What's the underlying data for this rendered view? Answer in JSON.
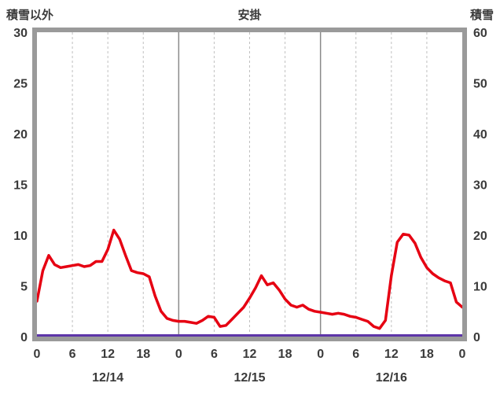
{
  "header": {
    "left_axis_label": "積雪以外",
    "title": "安掛",
    "right_axis_label": "積雪"
  },
  "colors": {
    "main_line": "#e60012",
    "snow_line": "#5d35a8",
    "frame": "#9a9a9a",
    "grid_minor": "#c0c0c0",
    "grid_major": "#8a8a8a",
    "text": "#3a3a3a",
    "plot_bg": "#ffffff"
  },
  "chart_data": {
    "type": "line",
    "title": "安掛",
    "left_axis": {
      "label": "積雪以外",
      "ticks": [
        0,
        5,
        10,
        15,
        20,
        25,
        30
      ],
      "range": [
        0,
        30
      ]
    },
    "right_axis": {
      "label": "積雪",
      "ticks": [
        0,
        10,
        20,
        30,
        40,
        50,
        60
      ],
      "range": [
        0,
        60
      ]
    },
    "x_axis": {
      "hour_ticks": [
        "0",
        "6",
        "12",
        "18",
        "0",
        "6",
        "12",
        "18",
        "0",
        "6",
        "12",
        "18",
        "0"
      ],
      "dates": [
        "12/14",
        "12/15",
        "12/16"
      ],
      "hours_total": 72,
      "interval_hours": 1
    },
    "grid": "vertical-only",
    "legend": "none",
    "series": [
      {
        "name": "積雪以外",
        "axis": "left",
        "color": "#e60012",
        "x_start_hour": 0,
        "x_step_hours": 1,
        "values": [
          3.5,
          6.5,
          8.0,
          7.1,
          6.8,
          6.9,
          7.0,
          7.1,
          6.9,
          7.0,
          7.4,
          7.4,
          8.6,
          10.5,
          9.6,
          8.0,
          6.5,
          6.3,
          6.2,
          5.9,
          4.0,
          2.5,
          1.8,
          1.6,
          1.5,
          1.5,
          1.4,
          1.3,
          1.6,
          2.0,
          1.9,
          1.0,
          1.1,
          1.7,
          2.3,
          2.9,
          3.8,
          4.8,
          6.0,
          5.1,
          5.3,
          4.6,
          3.7,
          3.1,
          2.9,
          3.1,
          2.7,
          2.5,
          2.4,
          2.3,
          2.2,
          2.3,
          2.2,
          2.0,
          1.9,
          1.7,
          1.5,
          1.0,
          0.8,
          1.6,
          6.0,
          9.3,
          10.1,
          10.0,
          9.2,
          7.8,
          6.8,
          6.2,
          5.8,
          5.5,
          5.3,
          3.4,
          2.9
        ]
      },
      {
        "name": "積雪",
        "axis": "right",
        "color": "#5d35a8",
        "x_hours": [
          0,
          72
        ],
        "values": [
          0,
          0
        ]
      }
    ]
  }
}
